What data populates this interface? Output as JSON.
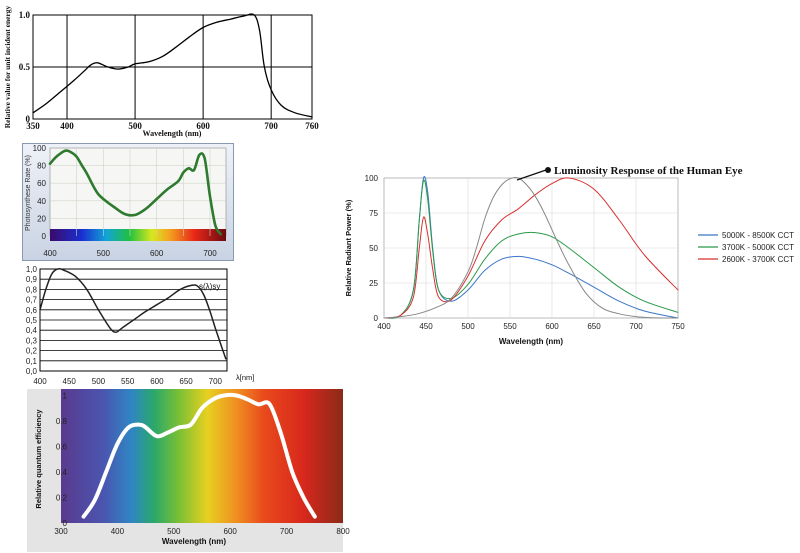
{
  "chart_data": [
    {
      "type": "line",
      "xlabel": "Wavelength (nm)",
      "ylabel": "Relative value for unit incident energy",
      "xlim": [
        350,
        760
      ],
      "ylim": [
        0,
        1.0
      ],
      "xticks": [
        "350",
        "400",
        "500",
        "600",
        "700",
        "760"
      ],
      "yticks": [
        "0",
        "0.5",
        "1.0"
      ],
      "grid": true,
      "series": [
        {
          "x": [
            350,
            370,
            390,
            410,
            425,
            435,
            445,
            460,
            475,
            490,
            500,
            520,
            540,
            560,
            580,
            600,
            620,
            640,
            660,
            675,
            683,
            690,
            700,
            715,
            735,
            760
          ],
          "y": [
            0.06,
            0.15,
            0.26,
            0.37,
            0.46,
            0.52,
            0.54,
            0.5,
            0.48,
            0.5,
            0.53,
            0.55,
            0.6,
            0.69,
            0.79,
            0.88,
            0.93,
            0.96,
            0.99,
            1.0,
            0.85,
            0.5,
            0.28,
            0.13,
            0.06,
            0.02
          ],
          "color": "#000000"
        }
      ]
    },
    {
      "type": "line",
      "ylabel": "Photosynthese Rate (%)",
      "xlim": [
        400,
        730
      ],
      "ylim": [
        0,
        100
      ],
      "xticks": [
        "400",
        "500",
        "600",
        "700"
      ],
      "yticks": [
        "0",
        "20",
        "40",
        "60",
        "80",
        "100"
      ],
      "grid": true,
      "series": [
        {
          "x": [
            400,
            410,
            420,
            430,
            440,
            450,
            460,
            470,
            480,
            490,
            500,
            520,
            540,
            560,
            580,
            600,
            620,
            640,
            650,
            660,
            670,
            680,
            690,
            700,
            710,
            720
          ],
          "y": [
            82,
            89,
            94,
            97,
            95,
            90,
            80,
            70,
            58,
            48,
            42,
            33,
            25,
            24,
            31,
            42,
            53,
            62,
            72,
            77,
            75,
            92,
            88,
            45,
            12,
            2
          ],
          "color": "#2e7a2e"
        }
      ]
    },
    {
      "type": "line",
      "xlabel": "λ[nm]",
      "xlim": [
        400,
        720
      ],
      "ylim": [
        0,
        1.0
      ],
      "xticks": [
        "400",
        "450",
        "500",
        "550",
        "600",
        "650",
        "700"
      ],
      "yticks": [
        "0,0",
        "0,1",
        "0,2",
        "0,3",
        "0,4",
        "0,5",
        "0,6",
        "0,7",
        "0,8",
        "0,9",
        "1,0"
      ],
      "annotations": [
        "s(λ)sy"
      ],
      "grid": true,
      "series": [
        {
          "x": [
            400,
            410,
            420,
            430,
            440,
            460,
            480,
            500,
            520,
            530,
            540,
            560,
            580,
            600,
            620,
            640,
            660,
            670,
            680,
            690,
            700,
            710,
            718
          ],
          "y": [
            0.6,
            0.8,
            0.95,
            1.0,
            0.99,
            0.93,
            0.8,
            0.6,
            0.42,
            0.38,
            0.42,
            0.5,
            0.58,
            0.65,
            0.72,
            0.8,
            0.84,
            0.83,
            0.75,
            0.6,
            0.42,
            0.25,
            0.12
          ],
          "color": "#222222"
        }
      ]
    },
    {
      "type": "line",
      "xlabel": "Wavelength (nm)",
      "ylabel": "Relative quantum efficiency",
      "xlim": [
        300,
        800
      ],
      "ylim": [
        0,
        1.05
      ],
      "xticks": [
        "300",
        "400",
        "500",
        "600",
        "700",
        "800"
      ],
      "yticks": [
        "0",
        "0.2",
        "0.4",
        "0.6",
        "0.8",
        "1"
      ],
      "grid": false,
      "series": [
        {
          "x": [
            340,
            360,
            380,
            400,
            420,
            440,
            450,
            470,
            490,
            510,
            530,
            550,
            570,
            590,
            610,
            630,
            650,
            670,
            690,
            710,
            730,
            750
          ],
          "y": [
            0.05,
            0.18,
            0.4,
            0.62,
            0.75,
            0.77,
            0.75,
            0.68,
            0.71,
            0.75,
            0.77,
            0.9,
            0.97,
            1.0,
            1.0,
            0.97,
            0.93,
            0.93,
            0.7,
            0.4,
            0.2,
            0.05
          ],
          "color": "#ffffff"
        }
      ]
    },
    {
      "type": "line",
      "title": "Luminosity Response of the Human Eye",
      "xlabel": "Wavelength (nm)",
      "ylabel": "Relative Radiant Power (%)",
      "xlim": [
        400,
        750
      ],
      "ylim": [
        0,
        100
      ],
      "xticks": [
        "400",
        "450",
        "500",
        "550",
        "600",
        "650",
        "700",
        "750"
      ],
      "yticks": [
        "0",
        "25",
        "50",
        "75",
        "100"
      ],
      "legend": "right",
      "grid": true,
      "series": [
        {
          "name": "5000K - 8500K CCT",
          "color": "#3a76c8",
          "x": [
            400,
            420,
            435,
            442,
            447,
            452,
            458,
            465,
            480,
            500,
            520,
            540,
            560,
            580,
            600,
            620,
            650,
            680,
            710,
            750
          ],
          "y": [
            0,
            2,
            20,
            70,
            100,
            90,
            50,
            20,
            12,
            20,
            34,
            42,
            44,
            42,
            38,
            32,
            22,
            12,
            5,
            0
          ]
        },
        {
          "name": "3700K - 5000K CCT",
          "color": "#2a9a4a",
          "x": [
            400,
            420,
            435,
            442,
            447,
            452,
            458,
            465,
            480,
            500,
            520,
            540,
            560,
            580,
            600,
            620,
            650,
            680,
            710,
            750
          ],
          "y": [
            0,
            2,
            20,
            70,
            98,
            85,
            48,
            20,
            14,
            24,
            42,
            55,
            60,
            61,
            58,
            50,
            36,
            22,
            12,
            4
          ]
        },
        {
          "name": "2600K - 3700K CCT",
          "color": "#d83030",
          "x": [
            400,
            420,
            435,
            442,
            447,
            452,
            458,
            465,
            480,
            500,
            520,
            540,
            560,
            580,
            600,
            620,
            650,
            680,
            710,
            750
          ],
          "y": [
            0,
            2,
            15,
            50,
            72,
            60,
            35,
            15,
            13,
            30,
            55,
            70,
            78,
            88,
            96,
            100,
            92,
            70,
            45,
            20
          ]
        },
        {
          "name": "",
          "color": "#888888",
          "x": [
            400,
            420,
            440,
            460,
            480,
            500,
            510,
            520,
            530,
            540,
            550,
            560,
            570,
            580,
            590,
            600,
            610,
            620,
            640,
            660,
            680,
            700,
            720,
            740,
            750
          ],
          "y": [
            0,
            1,
            3,
            7,
            14,
            33,
            50,
            71,
            86,
            95,
            99.5,
            100,
            95,
            87,
            76,
            63,
            50,
            38,
            18,
            7,
            3,
            1,
            0.2,
            0,
            0
          ]
        }
      ]
    }
  ]
}
